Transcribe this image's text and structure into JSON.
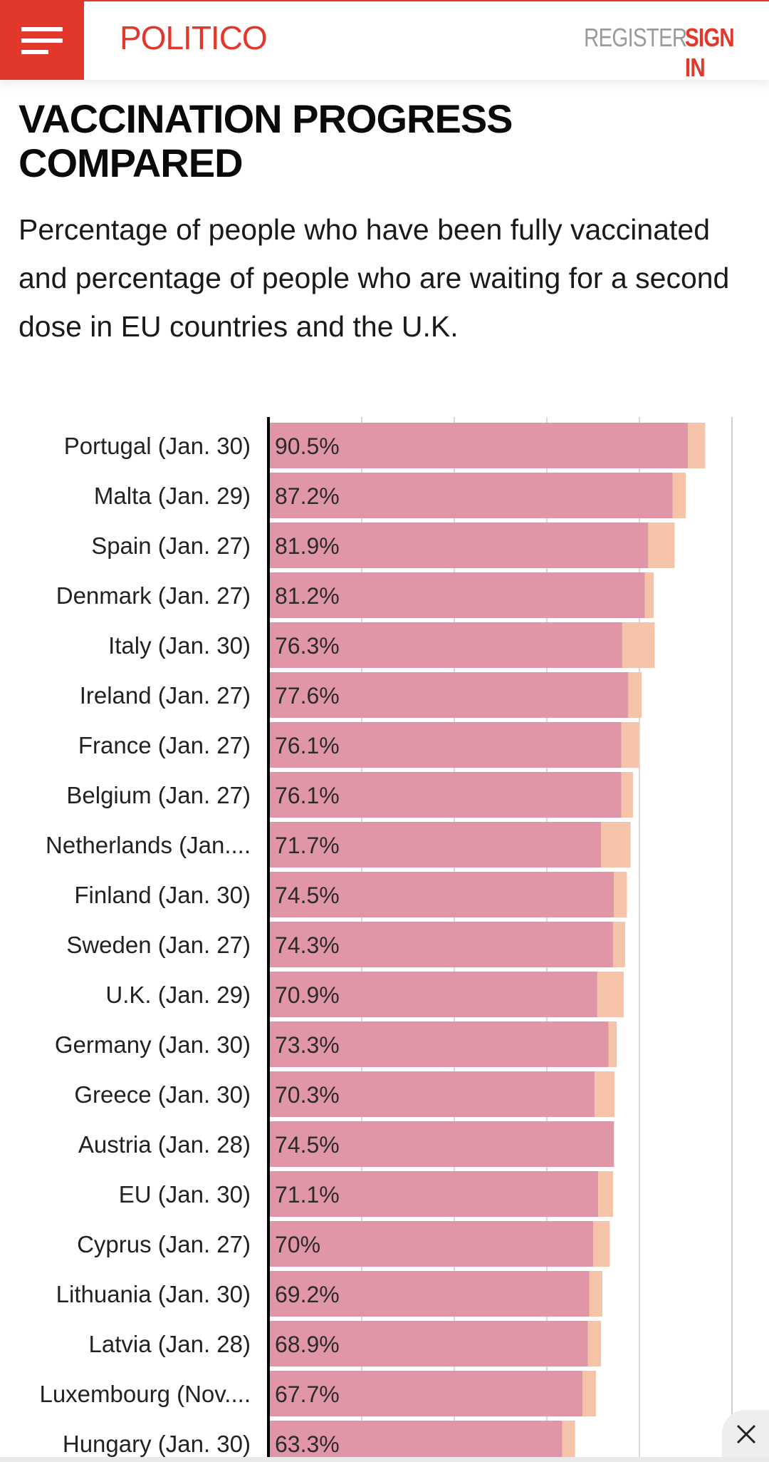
{
  "header": {
    "logo": "POLITICO",
    "register": "REGISTER",
    "sign_in": "SIGN IN",
    "menu_icon": "hamburger-menu-icon",
    "accent_color": "#e2382b"
  },
  "article": {
    "title": "VACCINATION PROGRESS COMPARED",
    "subtitle": "Percentage of people who have been fully vaccinated and percentage of people who are waiting for a second dose in EU countries and the U.K."
  },
  "chart_data": {
    "type": "bar",
    "orientation": "horizontal",
    "stacked": true,
    "xlim": [
      0,
      100
    ],
    "grid": true,
    "categories": [
      "Portugal (Jan. 30)",
      "Malta (Jan. 29)",
      "Spain (Jan. 27)",
      "Denmark (Jan. 27)",
      "Italy (Jan. 30)",
      "Ireland (Jan. 27)",
      "France (Jan. 27)",
      "Belgium (Jan. 27)",
      "Netherlands (Jan....",
      "Finland (Jan. 30)",
      "Sweden (Jan. 27)",
      "U.K. (Jan. 29)",
      "Germany (Jan. 30)",
      "Greece (Jan. 30)",
      "Austria (Jan. 28)",
      "EU (Jan. 30)",
      "Cyprus (Jan. 27)",
      "Lithuania (Jan. 30)",
      "Latvia (Jan. 28)",
      "Luxembourg (Nov....",
      "Hungary (Jan. 30)"
    ],
    "series": [
      {
        "name": "Fully vaccinated",
        "color": "#e096a6",
        "values": [
          90.5,
          87.2,
          81.9,
          81.2,
          76.3,
          77.6,
          76.1,
          76.1,
          71.7,
          74.5,
          74.3,
          70.9,
          73.3,
          70.3,
          74.5,
          71.1,
          70,
          69.2,
          68.9,
          67.7,
          63.3
        ]
      },
      {
        "name": "Waiting for second dose",
        "color": "#f4c3a8",
        "values": [
          3.7,
          2.8,
          5.7,
          1.9,
          7.0,
          2.9,
          3.8,
          2.5,
          6.4,
          2.8,
          2.6,
          5.7,
          1.8,
          4.3,
          0,
          3.2,
          3.6,
          2.8,
          2.8,
          2.9,
          2.8
        ]
      }
    ],
    "labels": [
      "90.5%",
      "87.2%",
      "81.9%",
      "81.2%",
      "76.3%",
      "77.6%",
      "76.1%",
      "76.1%",
      "71.7%",
      "74.5%",
      "74.3%",
      "70.9%",
      "73.3%",
      "70.3%",
      "74.5%",
      "71.1%",
      "70%",
      "69.2%",
      "68.9%",
      "67.7%",
      "63.3%"
    ]
  },
  "overlay": {
    "close_icon": "close-icon"
  }
}
